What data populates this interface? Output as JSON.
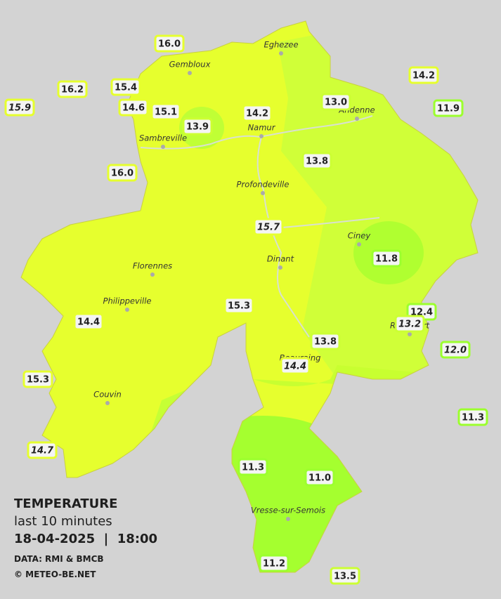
{
  "stations": [
    {
      "temp": "16.0"
    },
    {
      "temp": "16.2"
    },
    {
      "temp": "15.4"
    },
    {
      "temp": "15.9",
      "italic": true
    },
    {
      "temp": "14.6"
    },
    {
      "temp": "15.1"
    },
    {
      "temp": "13.9"
    },
    {
      "temp": "14.2"
    },
    {
      "temp": "13.0"
    },
    {
      "temp": "14.2"
    },
    {
      "temp": "11.9"
    },
    {
      "temp": "16.0"
    },
    {
      "temp": "13.8"
    },
    {
      "temp": "15.7",
      "italic": true
    },
    {
      "temp": "11.8"
    },
    {
      "temp": "15.3"
    },
    {
      "temp": "12.4"
    },
    {
      "temp": "13.2",
      "italic": true
    },
    {
      "temp": "14.4"
    },
    {
      "temp": "13.8"
    },
    {
      "temp": "12.0",
      "italic": true
    },
    {
      "temp": "14.4",
      "italic": true
    },
    {
      "temp": "15.3"
    },
    {
      "temp": "11.3"
    },
    {
      "temp": "14.7",
      "italic": true
    },
    {
      "temp": "11.3"
    },
    {
      "temp": "11.0"
    },
    {
      "temp": "11.2"
    },
    {
      "temp": "13.5"
    }
  ],
  "cities": [
    "Eghezee",
    "Gembloux",
    "Andenne",
    "Namur",
    "Sambreville",
    "Profondeville",
    "Ciney",
    "Dinant",
    "Florennes",
    "Philippeville",
    "Rochefort",
    "Beauraing",
    "Couvin",
    "Vresse-sur-Semois"
  ],
  "legend": {
    "title": "TEMPERATURE",
    "period": "last 10 minutes",
    "datetime": "18-04-2025  |  18:00",
    "source": "DATA: RMI & BMCB",
    "credit": "© METEO-BE.NET"
  }
}
